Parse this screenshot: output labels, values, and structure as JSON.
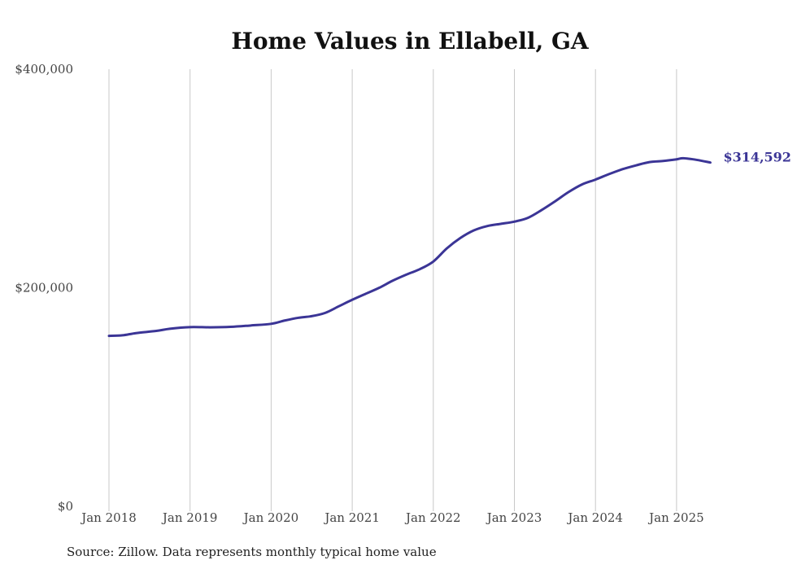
{
  "chart_data": {
    "type": "line",
    "title": "Home Values in Ellabell, GA",
    "source": "Source: Zillow. Data represents monthly typical home value",
    "xlabel": "",
    "ylabel": "",
    "ylim": [
      0,
      400000
    ],
    "y_ticks": [
      {
        "value": 0,
        "label": "$0"
      },
      {
        "value": 200000,
        "label": "$200,000"
      },
      {
        "value": 400000,
        "label": "$400,000"
      }
    ],
    "x_range": [
      0,
      89
    ],
    "x_ticks": [
      {
        "month": 0,
        "label": "Jan 2018"
      },
      {
        "month": 12,
        "label": "Jan 2019"
      },
      {
        "month": 24,
        "label": "Jan 2020"
      },
      {
        "month": 36,
        "label": "Jan 2021"
      },
      {
        "month": 48,
        "label": "Jan 2022"
      },
      {
        "month": 60,
        "label": "Jan 2023"
      },
      {
        "month": 72,
        "label": "Jan 2024"
      },
      {
        "month": 84,
        "label": "Jan 2025"
      }
    ],
    "grid": "vertical",
    "series": [
      {
        "name": "Typical home value",
        "color": "#3b3596",
        "end_label": "$314,592",
        "points": [
          [
            0,
            156000
          ],
          [
            2,
            156500
          ],
          [
            4,
            158500
          ],
          [
            7,
            160500
          ],
          [
            9,
            162500
          ],
          [
            12,
            164000
          ],
          [
            15,
            163800
          ],
          [
            18,
            164200
          ],
          [
            21,
            165500
          ],
          [
            24,
            167000
          ],
          [
            26,
            170000
          ],
          [
            28,
            172500
          ],
          [
            30,
            174000
          ],
          [
            32,
            177000
          ],
          [
            34,
            183000
          ],
          [
            36,
            189000
          ],
          [
            38,
            194500
          ],
          [
            40,
            200000
          ],
          [
            42,
            206500
          ],
          [
            44,
            212000
          ],
          [
            46,
            217000
          ],
          [
            48,
            224000
          ],
          [
            50,
            236000
          ],
          [
            52,
            245500
          ],
          [
            54,
            252500
          ],
          [
            56,
            256500
          ],
          [
            58,
            258500
          ],
          [
            60,
            260500
          ],
          [
            62,
            264000
          ],
          [
            64,
            271000
          ],
          [
            66,
            279000
          ],
          [
            68,
            287500
          ],
          [
            70,
            294500
          ],
          [
            72,
            299000
          ],
          [
            74,
            304000
          ],
          [
            76,
            308500
          ],
          [
            78,
            312000
          ],
          [
            80,
            315000
          ],
          [
            82,
            316000
          ],
          [
            84,
            317500
          ],
          [
            85,
            318500
          ],
          [
            87,
            317000
          ],
          [
            89,
            314592
          ]
        ]
      }
    ]
  }
}
